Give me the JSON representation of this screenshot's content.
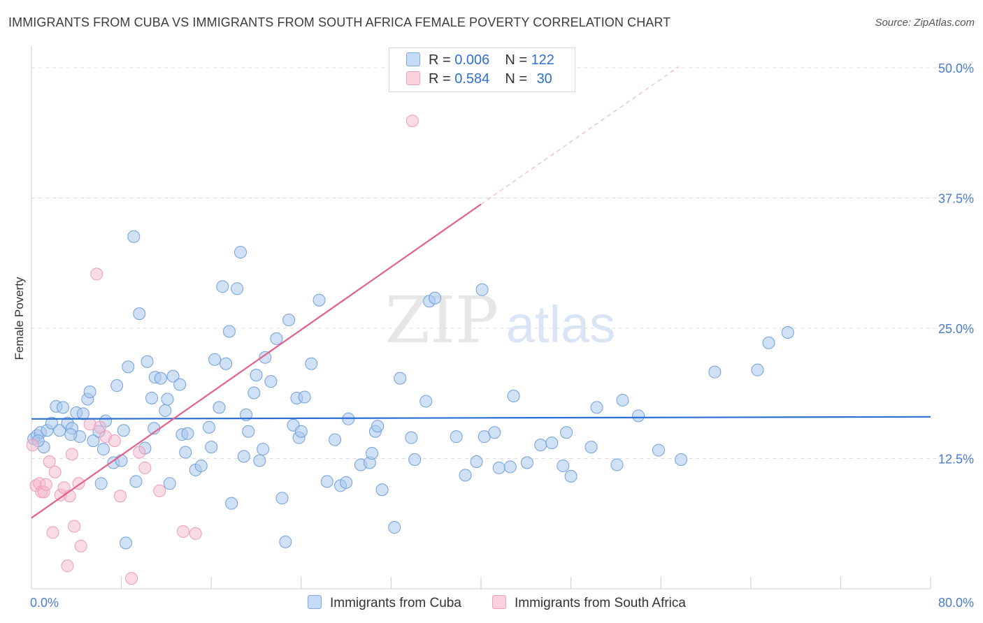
{
  "title": "IMMIGRANTS FROM CUBA VS IMMIGRANTS FROM SOUTH AFRICA FEMALE POVERTY CORRELATION CHART",
  "source": "Source: ZipAtlas.com",
  "legend_top": {
    "rows": [
      {
        "r_label": "R = ",
        "r_value": "0.006",
        "n_label": "N = ",
        "n_value": "122"
      },
      {
        "r_label": "R = ",
        "r_value": "0.584",
        "n_label": "N = ",
        "n_value": "30"
      }
    ]
  },
  "chart_data": {
    "type": "scatter",
    "title": "IMMIGRANTS FROM CUBA VS IMMIGRANTS FROM SOUTH AFRICA FEMALE POVERTY CORRELATION CHART",
    "xlabel": "",
    "ylabel": "Female Poverty",
    "xlim": [
      0,
      80
    ],
    "ylim": [
      0,
      50
    ],
    "x_tick_labels": [
      "0.0%",
      "80.0%"
    ],
    "y_ticks": [
      12.5,
      25.0,
      37.5,
      50.0
    ],
    "y_tick_labels": [
      "12.5%",
      "25.0%",
      "37.5%",
      "50.0%"
    ],
    "grid": "horizontal dashed",
    "legend_position": "bottom-center",
    "colors": {
      "cuba": "#a9c8ef",
      "cuba_line": "#2b6fd4",
      "south_africa": "#f4b8cb",
      "south_africa_line": "#e4608a",
      "tick_text": "#4a7ccf"
    },
    "series": [
      {
        "name": "Immigrants from Cuba",
        "color": "#a9c8ef",
        "trend": {
          "x": [
            0,
            80
          ],
          "y": [
            16.3,
            16.5
          ]
        },
        "points": [
          [
            0.2,
            14.4
          ],
          [
            0.5,
            14.7
          ],
          [
            0.8,
            15.0
          ],
          [
            1.1,
            13.6
          ],
          [
            1.4,
            15.2
          ],
          [
            1.8,
            15.9
          ],
          [
            2.2,
            17.5
          ],
          [
            2.5,
            15.2
          ],
          [
            2.8,
            17.4
          ],
          [
            3.2,
            15.9
          ],
          [
            3.6,
            15.4
          ],
          [
            4.0,
            16.9
          ],
          [
            4.3,
            14.6
          ],
          [
            4.6,
            16.8
          ],
          [
            5.0,
            18.2
          ],
          [
            5.2,
            18.9
          ],
          [
            5.5,
            14.2
          ],
          [
            6.0,
            15.1
          ],
          [
            6.2,
            10.1
          ],
          [
            6.4,
            13.4
          ],
          [
            6.6,
            16.1
          ],
          [
            7.3,
            12.1
          ],
          [
            7.6,
            19.5
          ],
          [
            8.0,
            12.3
          ],
          [
            8.2,
            15.2
          ],
          [
            8.4,
            4.4
          ],
          [
            8.6,
            21.3
          ],
          [
            9.1,
            33.8
          ],
          [
            9.3,
            10.3
          ],
          [
            9.6,
            26.4
          ],
          [
            10.1,
            13.5
          ],
          [
            10.3,
            21.8
          ],
          [
            10.7,
            18.3
          ],
          [
            10.9,
            15.4
          ],
          [
            11.0,
            20.3
          ],
          [
            11.5,
            20.2
          ],
          [
            11.9,
            17.1
          ],
          [
            12.1,
            18.2
          ],
          [
            12.3,
            10.1
          ],
          [
            12.6,
            20.4
          ],
          [
            13.2,
            19.6
          ],
          [
            13.4,
            14.8
          ],
          [
            13.7,
            13.1
          ],
          [
            13.9,
            14.9
          ],
          [
            14.6,
            11.4
          ],
          [
            15.1,
            11.8
          ],
          [
            15.8,
            15.5
          ],
          [
            16.0,
            13.6
          ],
          [
            16.3,
            22.0
          ],
          [
            16.7,
            17.4
          ],
          [
            17.0,
            29.0
          ],
          [
            17.3,
            21.6
          ],
          [
            17.6,
            24.7
          ],
          [
            17.8,
            8.2
          ],
          [
            18.3,
            28.8
          ],
          [
            18.6,
            32.3
          ],
          [
            18.9,
            12.7
          ],
          [
            19.1,
            16.7
          ],
          [
            19.3,
            15.1
          ],
          [
            19.8,
            18.8
          ],
          [
            20.0,
            20.5
          ],
          [
            20.3,
            12.3
          ],
          [
            20.6,
            13.4
          ],
          [
            20.8,
            22.2
          ],
          [
            21.3,
            19.9
          ],
          [
            21.8,
            24.0
          ],
          [
            22.3,
            8.7
          ],
          [
            22.6,
            4.5
          ],
          [
            22.9,
            25.8
          ],
          [
            23.3,
            15.7
          ],
          [
            23.6,
            18.3
          ],
          [
            23.8,
            14.5
          ],
          [
            24.0,
            15.1
          ],
          [
            24.3,
            18.4
          ],
          [
            24.9,
            21.6
          ],
          [
            25.6,
            27.7
          ],
          [
            26.3,
            10.3
          ],
          [
            27.0,
            14.3
          ],
          [
            27.5,
            9.9
          ],
          [
            28.0,
            10.2
          ],
          [
            28.2,
            16.3
          ],
          [
            29.3,
            11.9
          ],
          [
            30.1,
            12.1
          ],
          [
            30.3,
            13.0
          ],
          [
            30.6,
            15.1
          ],
          [
            30.8,
            15.6
          ],
          [
            31.2,
            9.5
          ],
          [
            32.3,
            5.9
          ],
          [
            32.8,
            20.2
          ],
          [
            33.8,
            14.5
          ],
          [
            34.1,
            12.4
          ],
          [
            35.1,
            18.0
          ],
          [
            35.4,
            27.6
          ],
          [
            35.9,
            27.9
          ],
          [
            37.8,
            14.6
          ],
          [
            38.6,
            10.9
          ],
          [
            39.6,
            12.2
          ],
          [
            40.1,
            28.7
          ],
          [
            40.3,
            14.6
          ],
          [
            41.2,
            15.0
          ],
          [
            41.6,
            11.6
          ],
          [
            42.6,
            11.7
          ],
          [
            42.9,
            18.5
          ],
          [
            44.1,
            12.1
          ],
          [
            45.3,
            13.8
          ],
          [
            46.3,
            14.0
          ],
          [
            47.3,
            11.8
          ],
          [
            47.6,
            15.0
          ],
          [
            48.0,
            10.8
          ],
          [
            49.8,
            13.6
          ],
          [
            50.3,
            17.4
          ],
          [
            52.1,
            11.9
          ],
          [
            52.6,
            18.1
          ],
          [
            54.0,
            16.6
          ],
          [
            55.8,
            13.3
          ],
          [
            57.8,
            12.4
          ],
          [
            60.8,
            20.8
          ],
          [
            64.6,
            21.0
          ],
          [
            65.6,
            23.6
          ],
          [
            67.3,
            24.6
          ],
          [
            0.6,
            14.2
          ],
          [
            3.5,
            14.8
          ]
        ]
      },
      {
        "name": "Immigrants from South Africa",
        "color": "#f4b8cb",
        "trend": {
          "x": [
            0,
            40
          ],
          "y": [
            6.8,
            36.9
          ]
        },
        "trend_dashed": {
          "x": [
            40,
            57.6
          ],
          "y": [
            36.9,
            50.1
          ]
        },
        "points": [
          [
            0.1,
            13.8
          ],
          [
            0.4,
            9.9
          ],
          [
            0.7,
            10.1
          ],
          [
            0.9,
            9.3
          ],
          [
            1.1,
            9.3
          ],
          [
            1.3,
            10.0
          ],
          [
            1.6,
            12.2
          ],
          [
            1.9,
            5.4
          ],
          [
            2.1,
            11.2
          ],
          [
            2.6,
            9.0
          ],
          [
            2.9,
            9.7
          ],
          [
            3.2,
            2.2
          ],
          [
            3.4,
            8.9
          ],
          [
            3.6,
            12.9
          ],
          [
            3.8,
            6.0
          ],
          [
            4.2,
            10.1
          ],
          [
            4.4,
            4.1
          ],
          [
            5.2,
            15.8
          ],
          [
            5.8,
            30.2
          ],
          [
            6.6,
            14.6
          ],
          [
            7.4,
            14.2
          ],
          [
            7.9,
            8.9
          ],
          [
            8.9,
            1.0
          ],
          [
            9.6,
            13.1
          ],
          [
            10.1,
            11.6
          ],
          [
            11.4,
            9.4
          ],
          [
            13.5,
            5.5
          ],
          [
            14.6,
            5.3
          ],
          [
            6.1,
            15.5
          ],
          [
            33.9,
            44.9
          ]
        ]
      }
    ]
  },
  "bottom_legend": [
    {
      "label": "Immigrants from Cuba",
      "color": "#a9c8ef",
      "border": "#7fa9e0"
    },
    {
      "label": "Immigrants from South Africa",
      "color": "#fbd0dd",
      "border": "#f0a0ba"
    }
  ]
}
